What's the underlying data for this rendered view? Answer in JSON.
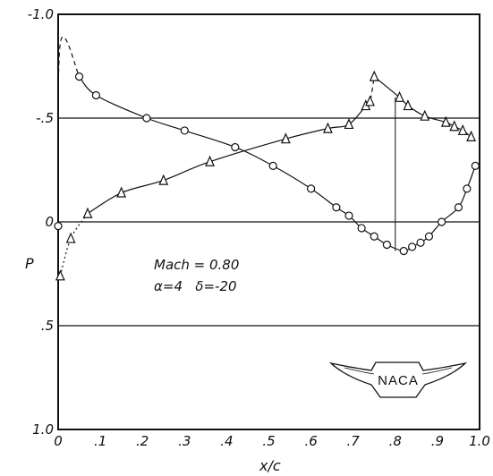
{
  "chart_data": {
    "type": "line",
    "xlabel": "x/c",
    "ylabel": "P",
    "xlim": [
      0,
      1.0
    ],
    "ylim": [
      1.0,
      -1.0
    ],
    "y_axis_inverted": true,
    "x_ticks": [
      {
        "value": 0.0,
        "label": "0"
      },
      {
        "value": 0.1,
        "label": ".1"
      },
      {
        "value": 0.2,
        "label": ".2"
      },
      {
        "value": 0.3,
        "label": ".3"
      },
      {
        "value": 0.4,
        "label": ".4"
      },
      {
        "value": 0.5,
        "label": ".5"
      },
      {
        "value": 0.6,
        "label": ".6"
      },
      {
        "value": 0.7,
        "label": ".7"
      },
      {
        "value": 0.8,
        "label": ".8"
      },
      {
        "value": 0.9,
        "label": ".9"
      },
      {
        "value": 1.0,
        "label": "1.0"
      }
    ],
    "y_ticks": [
      {
        "value": -1.0,
        "label": "-1.0"
      },
      {
        "value": -0.5,
        "label": "-.5"
      },
      {
        "value": 0.0,
        "label": "0"
      },
      {
        "value": 0.5,
        "label": ".5"
      },
      {
        "value": 1.0,
        "label": "1.0"
      }
    ],
    "gridlines_y": [
      -0.5,
      0.0,
      0.5
    ],
    "annotations": [
      "Mach = 0.80",
      "α=4   δ=-20"
    ],
    "marker_line_x": 0.8,
    "series": [
      {
        "marker": "circle",
        "points": [
          [
            0.0,
            0.02
          ],
          [
            0.05,
            -0.7
          ],
          [
            0.09,
            -0.61
          ],
          [
            0.21,
            -0.5
          ],
          [
            0.3,
            -0.44
          ],
          [
            0.42,
            -0.36
          ],
          [
            0.51,
            -0.27
          ],
          [
            0.6,
            -0.16
          ],
          [
            0.66,
            -0.07
          ],
          [
            0.69,
            -0.03
          ],
          [
            0.72,
            0.03
          ],
          [
            0.75,
            0.07
          ],
          [
            0.78,
            0.11
          ],
          [
            0.82,
            0.14
          ],
          [
            0.84,
            0.12
          ],
          [
            0.86,
            0.1
          ],
          [
            0.88,
            0.07
          ],
          [
            0.91,
            0.0
          ],
          [
            0.95,
            -0.07
          ],
          [
            0.97,
            -0.16
          ],
          [
            0.99,
            -0.27
          ]
        ],
        "leading_edge_peak": [
          0.005,
          -0.86
        ]
      },
      {
        "marker": "triangle",
        "points": [
          [
            0.005,
            0.26
          ],
          [
            0.03,
            0.08
          ],
          [
            0.07,
            -0.04
          ],
          [
            0.15,
            -0.14
          ],
          [
            0.25,
            -0.2
          ],
          [
            0.36,
            -0.29
          ],
          [
            0.54,
            -0.4
          ],
          [
            0.64,
            -0.45
          ],
          [
            0.69,
            -0.47
          ],
          [
            0.73,
            -0.56
          ],
          [
            0.74,
            -0.58
          ],
          [
            0.75,
            -0.7
          ],
          [
            0.81,
            -0.6
          ],
          [
            0.83,
            -0.56
          ],
          [
            0.87,
            -0.51
          ],
          [
            0.92,
            -0.48
          ],
          [
            0.94,
            -0.46
          ],
          [
            0.96,
            -0.44
          ],
          [
            0.98,
            -0.41
          ]
        ]
      }
    ]
  }
}
